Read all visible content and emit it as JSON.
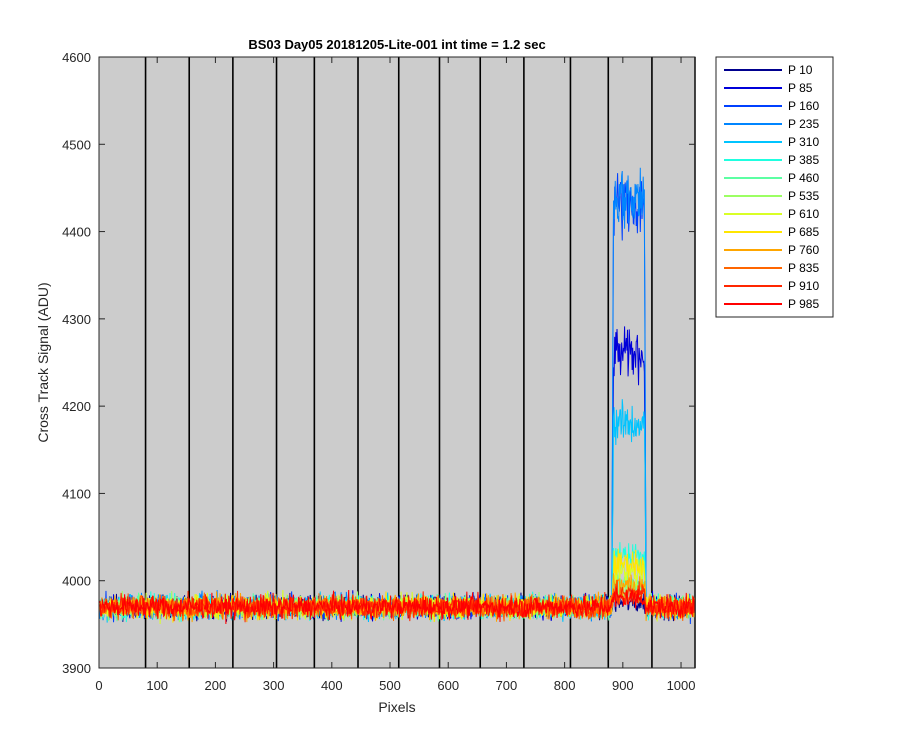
{
  "chart_data": {
    "type": "line",
    "title": "BS03 Day05 20181205-Lite-001 int time = 1.2 sec",
    "xlabel": "Pixels",
    "ylabel": "Cross Track Signal (ADU)",
    "xlim": [
      0,
      1024
    ],
    "ylim": [
      3900,
      4600
    ],
    "xticks": [
      0,
      100,
      200,
      300,
      400,
      500,
      600,
      700,
      800,
      900,
      1000
    ],
    "yticks": [
      3900,
      4000,
      4100,
      4200,
      4300,
      4400,
      4500,
      4600
    ],
    "background": "#cccccc",
    "grid": false,
    "vertical_lines_x": [
      80,
      155,
      230,
      305,
      370,
      445,
      515,
      585,
      655,
      730,
      810,
      875,
      950,
      1024
    ],
    "baseline": 3970,
    "noise_amplitude": 12,
    "bump_start": 881,
    "bump_end": 940,
    "legend_position": "outside-right",
    "series": [
      {
        "name": "P 10",
        "color": "#00008f",
        "plateau": 3975
      },
      {
        "name": "P 85",
        "color": "#0000d9",
        "plateau": 4260
      },
      {
        "name": "P 160",
        "color": "#0040ff",
        "plateau": 4430
      },
      {
        "name": "P 235",
        "color": "#0085ff",
        "plateau": 4440
      },
      {
        "name": "P 310",
        "color": "#00c4ff",
        "plateau": 4180
      },
      {
        "name": "P 385",
        "color": "#1fffe0",
        "plateau": 4030
      },
      {
        "name": "P 460",
        "color": "#5cffa3",
        "plateau": 3995
      },
      {
        "name": "P 535",
        "color": "#9cff63",
        "plateau": 3990
      },
      {
        "name": "P 610",
        "color": "#d9ff26",
        "plateau": 4010
      },
      {
        "name": "P 685",
        "color": "#ffe600",
        "plateau": 4020
      },
      {
        "name": "P 760",
        "color": "#ffa600",
        "plateau": 3995
      },
      {
        "name": "P 835",
        "color": "#ff6600",
        "plateau": 3985
      },
      {
        "name": "P 910",
        "color": "#ff2600",
        "plateau": 3985
      },
      {
        "name": "P 985",
        "color": "#ff0000",
        "plateau": 3980
      }
    ]
  }
}
